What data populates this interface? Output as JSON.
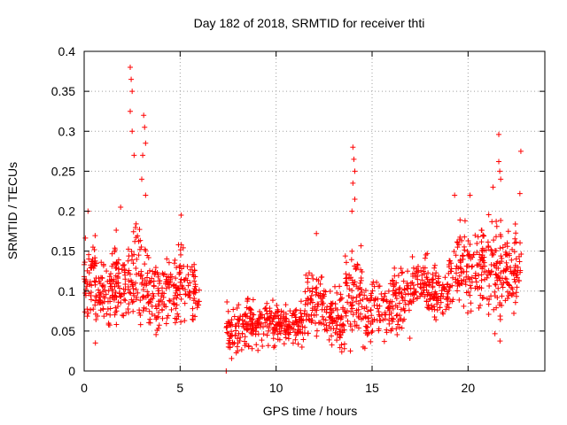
{
  "chart_data": {
    "type": "scatter",
    "title": "Day 182 of 2018, SRMTID for receiver thti",
    "xlabel": "GPS time / hours",
    "ylabel": "SRMTID / TECUs",
    "xlim": [
      0,
      24
    ],
    "ylim": [
      0,
      0.4
    ],
    "x_ticks": [
      0,
      5,
      10,
      15,
      20
    ],
    "y_ticks": [
      0,
      0.05,
      0.1,
      0.15,
      0.2,
      0.25,
      0.3,
      0.35,
      0.4
    ],
    "x_tick_labels": [
      "0",
      "5",
      "10",
      "15",
      "20"
    ],
    "y_tick_labels": [
      "0",
      "0.05",
      "0.1",
      "0.15",
      "0.2",
      "0.25",
      "0.3",
      "0.35",
      "0.4"
    ],
    "grid": true,
    "marker": "+",
    "color": "#ff0000",
    "outliers": [
      {
        "x": 7.4,
        "y": 0.0
      },
      {
        "x": 2.4,
        "y": 0.38
      },
      {
        "x": 2.45,
        "y": 0.365
      },
      {
        "x": 2.5,
        "y": 0.35
      },
      {
        "x": 2.4,
        "y": 0.325
      },
      {
        "x": 2.5,
        "y": 0.3
      },
      {
        "x": 3.1,
        "y": 0.32
      },
      {
        "x": 3.15,
        "y": 0.305
      },
      {
        "x": 3.2,
        "y": 0.285
      },
      {
        "x": 3.05,
        "y": 0.27
      },
      {
        "x": 2.6,
        "y": 0.27
      },
      {
        "x": 3.0,
        "y": 0.24
      },
      {
        "x": 3.2,
        "y": 0.22
      },
      {
        "x": 14.0,
        "y": 0.28
      },
      {
        "x": 14.05,
        "y": 0.265
      },
      {
        "x": 14.1,
        "y": 0.25
      },
      {
        "x": 14.0,
        "y": 0.235
      },
      {
        "x": 14.1,
        "y": 0.215
      },
      {
        "x": 13.95,
        "y": 0.2
      },
      {
        "x": 12.1,
        "y": 0.172
      },
      {
        "x": 0.2,
        "y": 0.2
      },
      {
        "x": 1.9,
        "y": 0.205
      },
      {
        "x": 5.05,
        "y": 0.195
      },
      {
        "x": 21.6,
        "y": 0.296
      },
      {
        "x": 22.75,
        "y": 0.275
      },
      {
        "x": 21.6,
        "y": 0.262
      },
      {
        "x": 21.65,
        "y": 0.25
      },
      {
        "x": 21.7,
        "y": 0.24
      },
      {
        "x": 22.7,
        "y": 0.222
      },
      {
        "x": 21.3,
        "y": 0.23
      },
      {
        "x": 20.1,
        "y": 0.22
      },
      {
        "x": 19.3,
        "y": 0.22
      }
    ],
    "envelope": [
      {
        "x0": 0.0,
        "x1": 0.6,
        "ylo": 0.03,
        "yhi": 0.19,
        "n": 55
      },
      {
        "x0": 0.6,
        "x1": 1.5,
        "ylo": 0.04,
        "yhi": 0.16,
        "n": 70
      },
      {
        "x0": 1.5,
        "x1": 2.3,
        "ylo": 0.04,
        "yhi": 0.18,
        "n": 70
      },
      {
        "x0": 2.3,
        "x1": 3.4,
        "ylo": 0.03,
        "yhi": 0.21,
        "n": 85
      },
      {
        "x0": 3.4,
        "x1": 4.4,
        "ylo": 0.03,
        "yhi": 0.16,
        "n": 75
      },
      {
        "x0": 4.4,
        "x1": 5.3,
        "ylo": 0.04,
        "yhi": 0.17,
        "n": 70
      },
      {
        "x0": 5.3,
        "x1": 6.0,
        "ylo": 0.055,
        "yhi": 0.145,
        "n": 45
      },
      {
        "x0": 7.4,
        "x1": 8.5,
        "ylo": 0.01,
        "yhi": 0.1,
        "n": 80
      },
      {
        "x0": 8.5,
        "x1": 10.0,
        "ylo": 0.015,
        "yhi": 0.1,
        "n": 110
      },
      {
        "x0": 10.0,
        "x1": 11.5,
        "ylo": 0.02,
        "yhi": 0.095,
        "n": 110
      },
      {
        "x0": 11.5,
        "x1": 12.5,
        "ylo": 0.025,
        "yhi": 0.14,
        "n": 75
      },
      {
        "x0": 12.5,
        "x1": 13.6,
        "ylo": 0.01,
        "yhi": 0.12,
        "n": 85
      },
      {
        "x0": 13.6,
        "x1": 14.6,
        "ylo": 0.02,
        "yhi": 0.17,
        "n": 80
      },
      {
        "x0": 14.6,
        "x1": 16.0,
        "ylo": 0.02,
        "yhi": 0.13,
        "n": 90
      },
      {
        "x0": 16.0,
        "x1": 17.0,
        "ylo": 0.03,
        "yhi": 0.15,
        "n": 75
      },
      {
        "x0": 17.0,
        "x1": 18.0,
        "ylo": 0.05,
        "yhi": 0.16,
        "n": 75
      },
      {
        "x0": 18.0,
        "x1": 19.0,
        "ylo": 0.05,
        "yhi": 0.14,
        "n": 75
      },
      {
        "x0": 19.0,
        "x1": 20.0,
        "ylo": 0.06,
        "yhi": 0.19,
        "n": 75
      },
      {
        "x0": 20.0,
        "x1": 21.0,
        "ylo": 0.06,
        "yhi": 0.2,
        "n": 75
      },
      {
        "x0": 21.0,
        "x1": 21.8,
        "ylo": 0.03,
        "yhi": 0.23,
        "n": 70
      },
      {
        "x0": 21.8,
        "x1": 22.8,
        "ylo": 0.06,
        "yhi": 0.2,
        "n": 75
      }
    ]
  }
}
